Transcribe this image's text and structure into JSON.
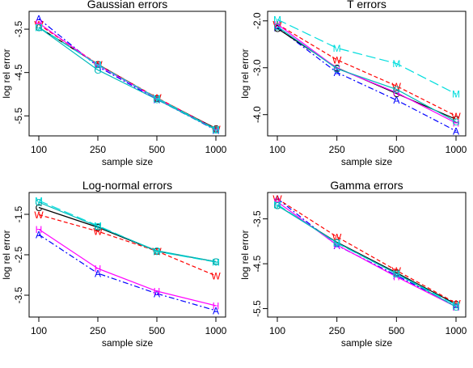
{
  "chart_data": [
    {
      "type": "line",
      "title": "Gaussian errors",
      "xlabel": "sample size",
      "ylabel": "log rel error",
      "x": [
        100,
        250,
        500,
        1000
      ],
      "xticks": [
        "100",
        "250",
        "500",
        "1000"
      ],
      "yticks": [
        -3.5,
        -4.5,
        -5.5
      ],
      "ylim": [
        -5.85,
        -3.2
      ],
      "grid": false,
      "series": [
        {
          "name": "A",
          "values": [
            -3.26,
            -4.36,
            -5.12,
            -5.83
          ],
          "color": "#0000FF",
          "dash": "dashdot"
        },
        {
          "name": "C",
          "values": [
            -3.46,
            -4.31,
            -5.09,
            -5.79
          ],
          "color": "#000000",
          "dash": "solid"
        },
        {
          "name": "W",
          "values": [
            -3.39,
            -4.31,
            -5.08,
            -5.8
          ],
          "color": "#FF0000",
          "dash": "dashed"
        },
        {
          "name": "H",
          "values": [
            -3.36,
            -4.33,
            -5.1,
            -5.81
          ],
          "color": "#FF00FF",
          "dash": "solid"
        },
        {
          "name": "M",
          "values": [
            -3.46,
            -4.32,
            -5.09,
            -5.81
          ],
          "color": "#00DDDD",
          "dash": "longdash"
        },
        {
          "name": "G",
          "values": [
            -3.46,
            -4.44,
            -5.12,
            -5.82
          ],
          "color": "#00BBBB",
          "dash": "solid"
        }
      ]
    },
    {
      "type": "line",
      "title": "T errors",
      "xlabel": "sample size",
      "ylabel": "log rel error",
      "x": [
        100,
        250,
        500,
        1000
      ],
      "xticks": [
        "100",
        "250",
        "500",
        "1000"
      ],
      "yticks": [
        -2.0,
        -3.0,
        -4.0
      ],
      "ylim": [
        -4.35,
        -1.9
      ],
      "grid": false,
      "series": [
        {
          "name": "A",
          "values": [
            -2.14,
            -3.1,
            -3.69,
            -4.35
          ],
          "color": "#0000FF",
          "dash": "dashdot"
        },
        {
          "name": "C",
          "values": [
            -2.16,
            -3.0,
            -3.55,
            -4.1
          ],
          "color": "#000000",
          "dash": "solid"
        },
        {
          "name": "W",
          "values": [
            -2.07,
            -2.83,
            -3.39,
            -4.03
          ],
          "color": "#FF0000",
          "dash": "dashed"
        },
        {
          "name": "H",
          "values": [
            -2.07,
            -3.01,
            -3.53,
            -4.18
          ],
          "color": "#FF00FF",
          "dash": "solid"
        },
        {
          "name": "M",
          "values": [
            -1.97,
            -2.58,
            -2.91,
            -3.56
          ],
          "color": "#00DDDD",
          "dash": "longdash"
        },
        {
          "name": "G",
          "values": [
            -2.12,
            -3.02,
            -3.46,
            -4.15
          ],
          "color": "#00BBBB",
          "dash": "solid"
        }
      ]
    },
    {
      "type": "line",
      "title": "Log-normal errors",
      "xlabel": "sample size",
      "ylabel": "log rel error",
      "x": [
        100,
        250,
        500,
        1000
      ],
      "xticks": [
        "100",
        "250",
        "500",
        "1000"
      ],
      "yticks": [
        -1.5,
        -2.5,
        -3.5
      ],
      "ylim": [
        -3.92,
        -1.08
      ],
      "grid": false,
      "series": [
        {
          "name": "A",
          "values": [
            -2.0,
            -2.96,
            -3.46,
            -3.88
          ],
          "color": "#0000FF",
          "dash": "dashdot"
        },
        {
          "name": "C",
          "values": [
            -1.33,
            -1.82,
            -2.41,
            -2.67
          ],
          "color": "#000000",
          "dash": "solid"
        },
        {
          "name": "W",
          "values": [
            -1.51,
            -1.92,
            -2.41,
            -3.02
          ],
          "color": "#FF0000",
          "dash": "dashed"
        },
        {
          "name": "H",
          "values": [
            -1.87,
            -2.84,
            -3.4,
            -3.76
          ],
          "color": "#FF00FF",
          "dash": "solid"
        },
        {
          "name": "M",
          "values": [
            -1.16,
            -1.78,
            -2.42,
            -2.68
          ],
          "color": "#00DDDD",
          "dash": "longdash"
        },
        {
          "name": "G",
          "values": [
            -1.2,
            -1.8,
            -2.4,
            -2.67
          ],
          "color": "#00BBBB",
          "dash": "solid"
        }
      ]
    },
    {
      "type": "line",
      "title": "Gamma errors",
      "xlabel": "sample size",
      "ylabel": "log rel error",
      "x": [
        100,
        250,
        500,
        1000
      ],
      "xticks": [
        "100",
        "250",
        "500",
        "1000"
      ],
      "yticks": [
        -3.5,
        -4.5,
        -5.5
      ],
      "ylim": [
        -5.58,
        -3.02
      ],
      "grid": false,
      "series": [
        {
          "name": "A",
          "values": [
            -3.05,
            -4.09,
            -4.76,
            -5.45
          ],
          "color": "#0000FF",
          "dash": "dashdot"
        },
        {
          "name": "C",
          "values": [
            -3.2,
            -4.02,
            -4.7,
            -5.4
          ],
          "color": "#000000",
          "dash": "solid"
        },
        {
          "name": "W",
          "values": [
            -3.05,
            -3.9,
            -4.65,
            -5.38
          ],
          "color": "#FF0000",
          "dash": "dashed"
        },
        {
          "name": "H",
          "values": [
            -3.12,
            -4.08,
            -4.79,
            -5.46
          ],
          "color": "#FF00FF",
          "dash": "solid"
        },
        {
          "name": "M",
          "values": [
            -3.18,
            -4.04,
            -4.72,
            -5.42
          ],
          "color": "#00DDDD",
          "dash": "longdash"
        },
        {
          "name": "G",
          "values": [
            -3.2,
            -4.03,
            -4.72,
            -5.46
          ],
          "color": "#00BBBB",
          "dash": "solid"
        }
      ]
    }
  ]
}
